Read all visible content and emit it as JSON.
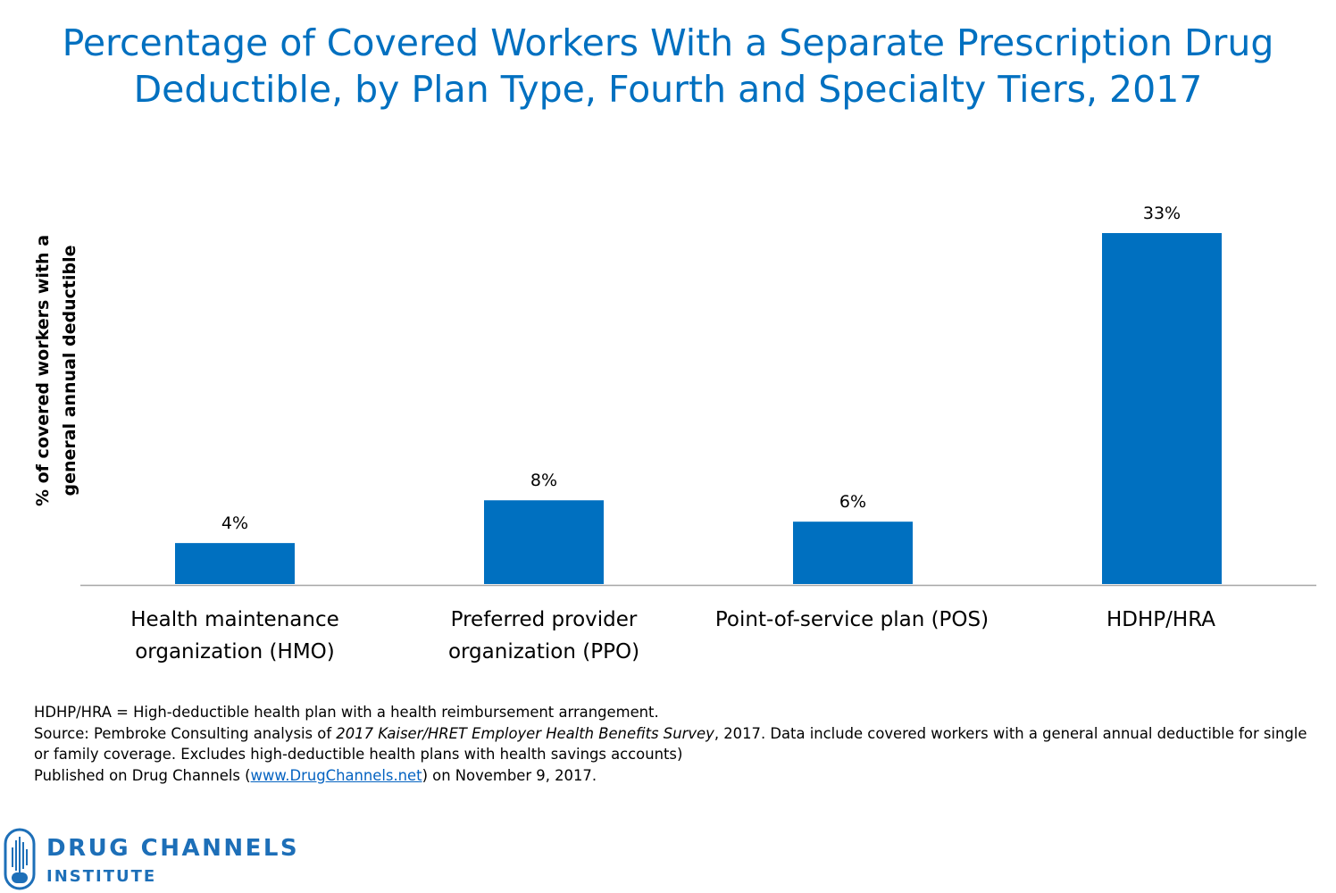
{
  "chart_data": {
    "type": "bar",
    "title_lines": [
      "Percentage of Covered Workers With a Separate Prescription Drug",
      "Deductible, by Plan Type, Fourth and Specialty Tiers, 2017"
    ],
    "ylabel_lines": [
      "% of covered workers with a",
      "general annual deductible"
    ],
    "categories": [
      [
        "Health maintenance",
        "organization (HMO)"
      ],
      [
        "Preferred provider",
        "organization (PPO)"
      ],
      [
        "Point-of-service plan (POS)"
      ],
      [
        "HDHP/HRA"
      ]
    ],
    "values": [
      4,
      8,
      6,
      33
    ],
    "value_labels": [
      "4%",
      "8%",
      "6%",
      "33%"
    ],
    "ylim": [
      0,
      33
    ],
    "grid": false,
    "legend": "none",
    "bar_color": "#0070c0"
  },
  "notes": {
    "line1": "HDHP/HRA = High-deductible health plan with a health reimbursement arrangement.",
    "source_prefix": "Source: Pembroke Consulting analysis of ",
    "source_italic": "2017 Kaiser/HRET Employer Health Benefits Survey",
    "source_suffix": ", 2017. Data include covered workers  with a general annual deductible for single or family coverage. Excludes high-deductible health plans with health savings accounts)",
    "published_prefix": "Published on Drug Channels (",
    "published_link": "www.DrugChannels.net",
    "published_suffix": ") on November 9, 2017."
  },
  "logo": {
    "line1": "DRUG CHANNELS",
    "line2": "INSTITUTE",
    "color": "#1d6fb8"
  }
}
